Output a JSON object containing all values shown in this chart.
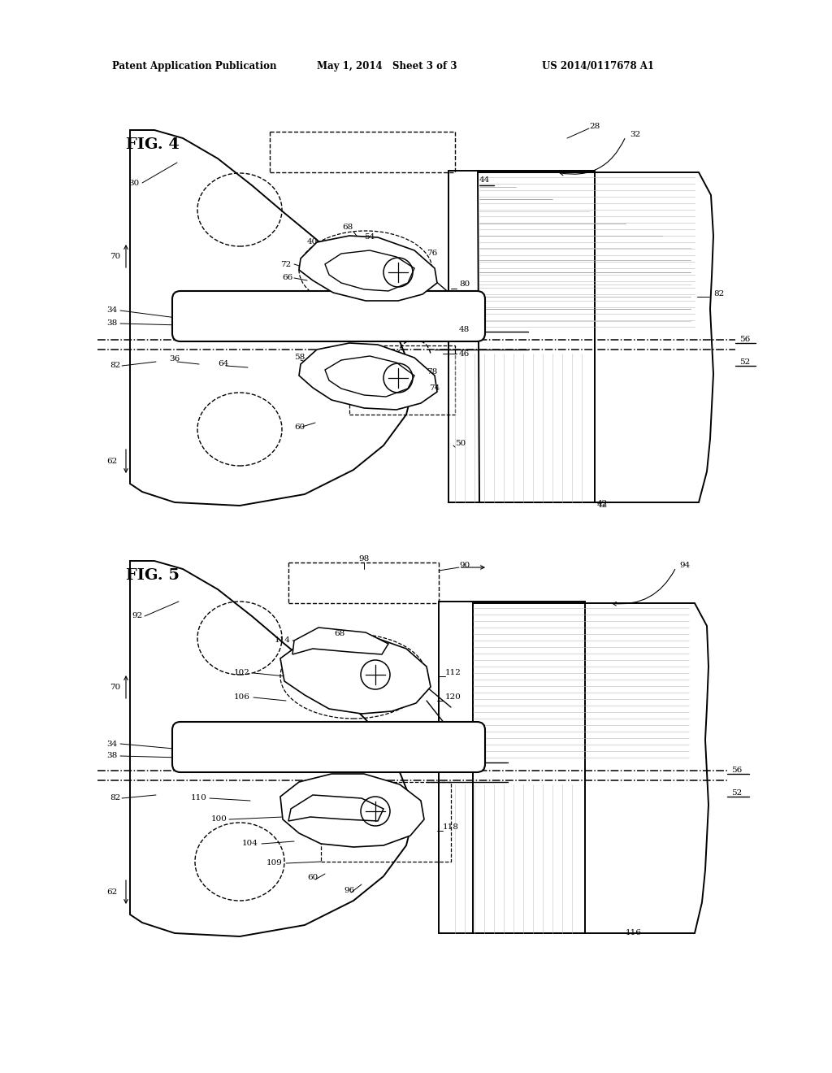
{
  "bg_color": "#ffffff",
  "line_color": "#000000",
  "fig_width": 10.24,
  "fig_height": 13.2,
  "header_text": "Patent Application Publication",
  "header_date": "May 1, 2014   Sheet 3 of 3",
  "header_patent": "US 2014/0117678 A1",
  "fig4_label": "FIG. 4",
  "fig5_label": "FIG. 5",
  "lw_main": 1.4,
  "lw_thin": 0.8,
  "lw_dashdot": 1.0,
  "lw_hatch": 0.4
}
